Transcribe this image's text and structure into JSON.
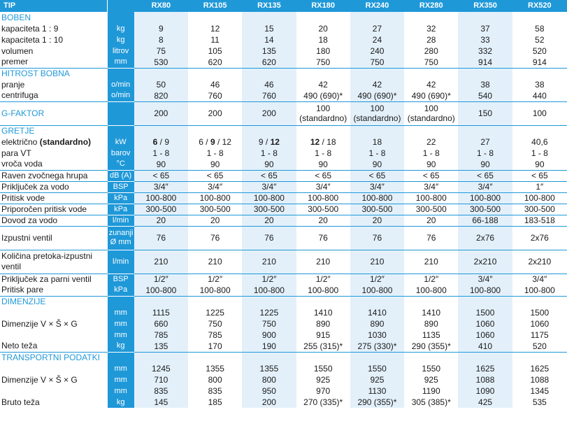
{
  "header": {
    "label": "TIP",
    "models": [
      "RX80",
      "RX105",
      "RX135",
      "RX180",
      "RX240",
      "RX280",
      "RX350",
      "RX520"
    ]
  },
  "rows": [
    {
      "label": "BOBEN",
      "section": true,
      "unit": "",
      "values": [
        "",
        "",
        "",
        "",
        "",
        "",
        "",
        ""
      ],
      "sep": false
    },
    {
      "label": "kapaciteta 1 : 9",
      "unit": "kg",
      "values": [
        "9",
        "12",
        "15",
        "20",
        "27",
        "32",
        "37",
        "58"
      ]
    },
    {
      "label": "kapaciteta 1 : 10",
      "unit": "kg",
      "values": [
        "8",
        "11",
        "14",
        "18",
        "24",
        "28",
        "33",
        "52"
      ]
    },
    {
      "label": "volumen",
      "unit": "litrov",
      "values": [
        "75",
        "105",
        "135",
        "180",
        "240",
        "280",
        "332",
        "520"
      ]
    },
    {
      "label": "premer",
      "unit": "mm",
      "values": [
        "530",
        "620",
        "620",
        "750",
        "750",
        "750",
        "914",
        "914"
      ]
    },
    {
      "label": "HITROST BOBNA",
      "section": true,
      "unit": "",
      "values": [
        "",
        "",
        "",
        "",
        "",
        "",
        "",
        ""
      ],
      "sep": true
    },
    {
      "label": "pranje",
      "unit": "o/min",
      "values": [
        "50",
        "46",
        "46",
        "42",
        "42",
        "42",
        "38",
        "38"
      ]
    },
    {
      "label": "centrifuga",
      "unit": "o/min",
      "values": [
        "820",
        "760",
        "760",
        "490 (690)*",
        "490 (690)*",
        "490 (690)*",
        "540",
        "440"
      ]
    },
    {
      "label": "G-FAKTOR",
      "section": true,
      "unit": "",
      "values": [
        "200",
        "200",
        "200",
        "100\n(standardno)",
        "100\n(standardno)",
        "100\n(standardno)",
        "150",
        "100"
      ],
      "sep": true,
      "tall": 34
    },
    {
      "label": "GRETJE",
      "section": true,
      "unit": "",
      "values": [
        "",
        "",
        "",
        "",
        "",
        "",
        "",
        ""
      ],
      "sep": true
    },
    {
      "label": "električno (standardno)",
      "label_plain": "električno ",
      "label_bold": "(standardno)",
      "unit": "kW",
      "values": [
        "6 / 9",
        "6 / 9 / 12",
        "9 / 12",
        "12 / 18",
        "18",
        "22",
        "27",
        "40,6"
      ],
      "bold_parts": [
        [
          "6",
          " / 9"
        ],
        [
          "6 / ",
          "9",
          " / 12"
        ],
        [
          "9 / ",
          "12"
        ],
        [
          "12",
          " / 18"
        ]
      ]
    },
    {
      "label": "para VT",
      "unit": "barov",
      "values": [
        "1 - 8",
        "1 - 8",
        "1 - 8",
        "1 - 8",
        "1 - 8",
        "1 - 8",
        "1 - 8",
        "1 - 8"
      ]
    },
    {
      "label": "vroča voda",
      "unit": "°C",
      "values": [
        "90",
        "90",
        "90",
        "90",
        "90",
        "90",
        "90",
        "90"
      ]
    },
    {
      "label": "Raven zvočnega hrupa",
      "unit": "dB (A)",
      "values": [
        "< 65",
        "< 65",
        "< 65",
        "< 65",
        "< 65",
        "< 65",
        "< 65",
        "< 65"
      ],
      "sep": true
    },
    {
      "label": "Priključek za vodo",
      "unit": "BSP",
      "values": [
        "3/4″",
        "3/4″",
        "3/4″",
        "3/4″",
        "3/4″",
        "3/4″",
        "3/4″",
        "1″"
      ],
      "sep": true
    },
    {
      "label": "Pritisk vode",
      "unit": "kPa",
      "values": [
        "100-800",
        "100-800",
        "100-800",
        "100-800",
        "100-800",
        "100-800",
        "100-800",
        "100-800"
      ],
      "sep": true
    },
    {
      "label": "Priporočen pritisk vode",
      "unit": "kPa",
      "values": [
        "300-500",
        "300-500",
        "300-500",
        "300-500",
        "300-500",
        "300-500",
        "300-500",
        "300-500"
      ],
      "sep": true
    },
    {
      "label": "Dovod za vodo",
      "unit": "l/min",
      "values": [
        "20",
        "20",
        "20",
        "20",
        "20",
        "20",
        "66-188",
        "183-518"
      ],
      "sep": true
    },
    {
      "label": "Izpustni ventil",
      "unit": "zunanji\nØ mm",
      "values": [
        "76",
        "76",
        "76",
        "76",
        "76",
        "76",
        "2x76",
        "2x76"
      ],
      "sep": true,
      "tall": 34
    },
    {
      "label": "Količina pretoka-izpustni ventil",
      "unit": "l/min",
      "values": [
        "210",
        "210",
        "210",
        "210",
        "210",
        "210",
        "2x210",
        "2x210"
      ],
      "sep": true,
      "tall": 34,
      "wrap": true
    },
    {
      "label": "Priključek za parni ventil",
      "unit": "BSP",
      "values": [
        "1/2″",
        "1/2″",
        "1/2″",
        "1/2″",
        "1/2″",
        "1/2″",
        "3/4″",
        "3/4″"
      ],
      "sep": true
    },
    {
      "label": "Pritisk pare",
      "unit": "kPa",
      "values": [
        "100-800",
        "100-800",
        "100-800",
        "100-800",
        "100-800",
        "100-800",
        "100-800",
        "100-800"
      ]
    },
    {
      "label": "DIMENZIJE",
      "section": true,
      "unit": "",
      "values": [
        "",
        "",
        "",
        "",
        "",
        "",
        "",
        ""
      ],
      "sep": true
    },
    {
      "label": "",
      "unit": "mm",
      "values": [
        "1115",
        "1225",
        "1225",
        "1410",
        "1410",
        "1410",
        "1500",
        "1500"
      ]
    },
    {
      "label": "Dimenzije V × Š × G",
      "unit": "mm",
      "values": [
        "660",
        "750",
        "750",
        "890",
        "890",
        "890",
        "1060",
        "1060"
      ]
    },
    {
      "label": "",
      "unit": "mm",
      "values": [
        "785",
        "785",
        "900",
        "915",
        "1030",
        "1135",
        "1060",
        "1175"
      ]
    },
    {
      "label": "Neto teža",
      "unit": "kg",
      "values": [
        "135",
        "170",
        "190",
        "255 (315)*",
        "275 (330)*",
        "290 (355)*",
        "410",
        "520"
      ]
    },
    {
      "label": "TRANSPORTNI PODATKI",
      "section": true,
      "unit": "",
      "values": [
        "",
        "",
        "",
        "",
        "",
        "",
        "",
        ""
      ],
      "sep": true
    },
    {
      "label": "",
      "unit": "mm",
      "values": [
        "1245",
        "1355",
        "1355",
        "1550",
        "1550",
        "1550",
        "1625",
        "1625"
      ]
    },
    {
      "label": "Dimenzije V × Š × G",
      "unit": "mm",
      "values": [
        "710",
        "800",
        "800",
        "925",
        "925",
        "925",
        "1088",
        "1088"
      ]
    },
    {
      "label": "",
      "unit": "mm",
      "values": [
        "835",
        "835",
        "950",
        "970",
        "1130",
        "1190",
        "1090",
        "1345"
      ]
    },
    {
      "label": "Bruto teža",
      "unit": "kg",
      "values": [
        "145",
        "185",
        "200",
        "270 (335)*",
        "290 (355)*",
        "305 (385)*",
        "425",
        "535"
      ]
    }
  ],
  "colors": {
    "accent": "#1f98d8",
    "alt_column": "#e3f0fa"
  }
}
